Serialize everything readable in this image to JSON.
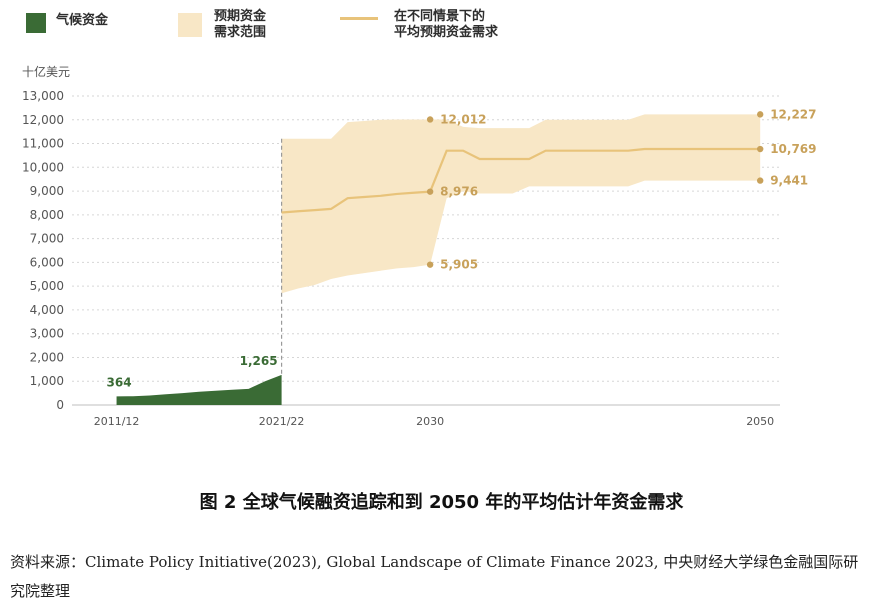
{
  "legend": [
    {
      "label": "气候资金",
      "color": "#3a6b35"
    },
    {
      "label": "预期资金\n需求范围",
      "color": "#f8e7c6"
    },
    {
      "label": "在不同情景下的\n平均预期资金需求",
      "color": "#e8c37a"
    }
  ],
  "chart_data": {
    "type": "area",
    "ylabel": "十亿美元",
    "ylim": [
      0,
      13000
    ],
    "yticks": [
      "0",
      "1,000",
      "2,000",
      "3,000",
      "4,000",
      "5,000",
      "6,000",
      "7,000",
      "8,000",
      "9,000",
      "10,000",
      "11,000",
      "12,000",
      "13,000"
    ],
    "xticks": [
      {
        "label": "2011/12",
        "x": 2011
      },
      {
        "label": "2021/22",
        "x": 2021
      },
      {
        "label": "2030",
        "x": 2030
      },
      {
        "label": "2050",
        "x": 2050
      }
    ],
    "xlim": [
      2008.3,
      2051.2
    ],
    "grid": true,
    "series": [
      {
        "name": "气候资金",
        "kind": "area",
        "color": "#3a6b35",
        "x": [
          2011,
          2012,
          2013,
          2014,
          2015,
          2016,
          2017,
          2018,
          2019,
          2020,
          2021
        ],
        "values": [
          364,
          370,
          400,
          450,
          500,
          560,
          600,
          640,
          680,
          1000,
          1265
        ]
      },
      {
        "name": "预期资金需求范围",
        "kind": "band",
        "color": "#f8e7c6",
        "x": [
          2021,
          2022,
          2023,
          2024,
          2025,
          2026,
          2027,
          2028,
          2029,
          2030,
          2031,
          2032,
          2033,
          2034,
          2035,
          2036,
          2037,
          2038,
          2039,
          2040,
          2041,
          2042,
          2043,
          2044,
          2045,
          2046,
          2047,
          2048,
          2049,
          2050
        ],
        "upper": [
          11200,
          11200,
          11200,
          11200,
          11900,
          11950,
          12000,
          12012,
          12012,
          12012,
          12012,
          11700,
          11650,
          11650,
          11650,
          11650,
          12000,
          12000,
          12000,
          12000,
          12000,
          12000,
          12227,
          12227,
          12227,
          12227,
          12227,
          12227,
          12227,
          12227
        ],
        "lower": [
          4700,
          4900,
          5050,
          5300,
          5450,
          5550,
          5650,
          5750,
          5800,
          5905,
          8700,
          9000,
          8900,
          8900,
          8900,
          9200,
          9200,
          9200,
          9200,
          9200,
          9200,
          9200,
          9441,
          9441,
          9441,
          9441,
          9441,
          9441,
          9441,
          9441
        ]
      },
      {
        "name": "平均预期资金需求",
        "kind": "line",
        "color": "#e8c37a",
        "x": [
          2021,
          2022,
          2023,
          2024,
          2025,
          2026,
          2027,
          2028,
          2029,
          2030,
          2031,
          2032,
          2033,
          2034,
          2035,
          2036,
          2037,
          2038,
          2039,
          2040,
          2041,
          2042,
          2043,
          2044,
          2045,
          2046,
          2047,
          2048,
          2049,
          2050
        ],
        "values": [
          8100,
          8150,
          8200,
          8250,
          8700,
          8750,
          8800,
          8880,
          8930,
          8976,
          10700,
          10700,
          10350,
          10350,
          10350,
          10350,
          10700,
          10700,
          10700,
          10700,
          10700,
          10700,
          10769,
          10769,
          10769,
          10769,
          10769,
          10769,
          10769,
          10769
        ]
      }
    ],
    "reference_line": {
      "x": 2021,
      "style": "dashed",
      "color": "#9a9a9a"
    },
    "annotations": [
      {
        "text": "364",
        "x": 2011,
        "y": 364,
        "color": "#3a6b35",
        "marker": false,
        "side": "right-above"
      },
      {
        "text": "1,265",
        "x": 2021,
        "y": 1265,
        "color": "#3a6b35",
        "marker": false,
        "side": "left-above"
      },
      {
        "text": "12,012",
        "x": 2030,
        "y": 12012,
        "color": "#c8a15a",
        "marker": true,
        "side": "right"
      },
      {
        "text": "8,976",
        "x": 2030,
        "y": 8976,
        "color": "#c8a15a",
        "marker": true,
        "side": "right"
      },
      {
        "text": "5,905",
        "x": 2030,
        "y": 5905,
        "color": "#c8a15a",
        "marker": true,
        "side": "right"
      },
      {
        "text": "12,227",
        "x": 2050,
        "y": 12227,
        "color": "#c8a15a",
        "marker": true,
        "side": "right"
      },
      {
        "text": "10,769",
        "x": 2050,
        "y": 10769,
        "color": "#c8a15a",
        "marker": true,
        "side": "right"
      },
      {
        "text": "9,441",
        "x": 2050,
        "y": 9441,
        "color": "#c8a15a",
        "marker": true,
        "side": "right"
      }
    ]
  },
  "caption": "图 2 全球气候融资追踪和到 2050 年的平均估计年资金需求",
  "source": "资料来源：Climate Policy Initiative(2023), Global Landscape of Climate Finance 2023, 中央财经大学绿色金融国际研究院整理"
}
